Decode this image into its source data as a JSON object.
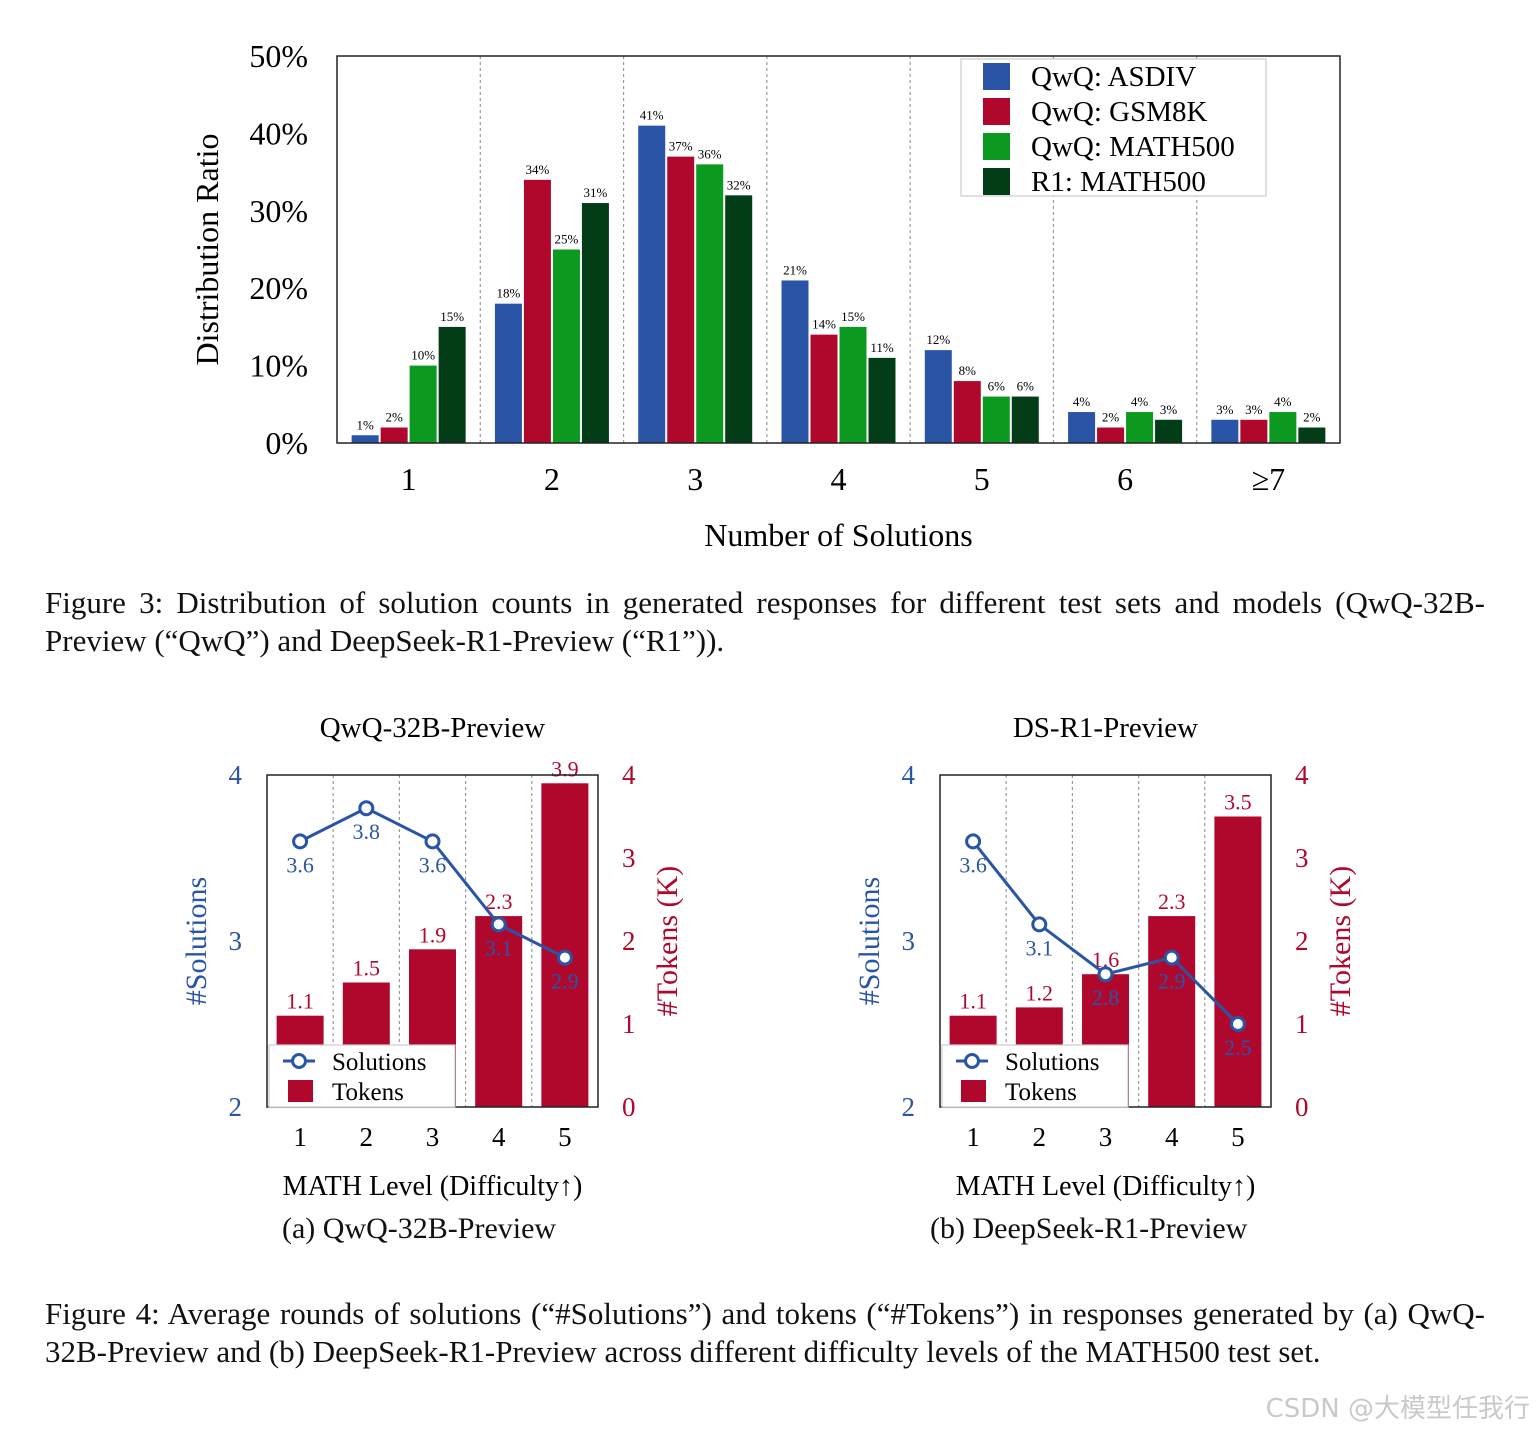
{
  "chart_data": [
    {
      "type": "bar",
      "categories": [
        "1",
        "2",
        "3",
        "4",
        "5",
        "6",
        "≥7"
      ],
      "series": [
        {
          "name": "QwQ: ASDIV",
          "color": "#2a55a7",
          "values": [
            1,
            18,
            41,
            21,
            12,
            4,
            3
          ]
        },
        {
          "name": "QwQ: GSM8K",
          "color": "#b0082c",
          "values": [
            2,
            34,
            37,
            14,
            8,
            2,
            3
          ]
        },
        {
          "name": "QwQ: MATH500",
          "color": "#0b9a1f",
          "values": [
            10,
            25,
            36,
            15,
            6,
            4,
            4
          ]
        },
        {
          "name": "R1: MATH500",
          "color": "#023d18",
          "values": [
            15,
            31,
            32,
            11,
            6,
            3,
            2
          ]
        }
      ],
      "data_label_suffix": "%",
      "xlabel": "Number of Solutions",
      "ylabel": "Distribution Ratio",
      "ylim": [
        0,
        50
      ],
      "yticks": [
        "0%",
        "10%",
        "20%",
        "30%",
        "40%",
        "50%"
      ],
      "legend": "top-right",
      "grid": "vertical dotted separators"
    },
    {
      "type": "bar+line",
      "title": "QwQ-32B-Preview",
      "categories": [
        "1",
        "2",
        "3",
        "4",
        "5"
      ],
      "bars": {
        "name": "Tokens",
        "color": "#b0082c",
        "values": [
          1.1,
          1.5,
          1.9,
          2.3,
          3.9
        ],
        "labels": [
          "1.1",
          "1.5",
          "1.9",
          "2.3",
          "3.9"
        ]
      },
      "line": {
        "name": "Solutions",
        "color": "#2a55a7",
        "values": [
          3.6,
          3.8,
          3.6,
          3.1,
          2.9
        ],
        "labels": [
          "3.6",
          "3.8",
          "3.6",
          "3.1",
          "2.9"
        ]
      },
      "xlabel": "MATH Level (Difficulty↑)",
      "ylabel_left": "#Solutions",
      "ylabel_right": "#Tokens (K)",
      "ylim_left": [
        2,
        4
      ],
      "yticks_left": [
        "2",
        "3",
        "4"
      ],
      "ylim_right": [
        0,
        4
      ],
      "yticks_right": [
        "0",
        "1",
        "2",
        "3",
        "4"
      ],
      "legend": "bottom-left"
    },
    {
      "type": "bar+line",
      "title": "DS-R1-Preview",
      "categories": [
        "1",
        "2",
        "3",
        "4",
        "5"
      ],
      "bars": {
        "name": "Tokens",
        "color": "#b0082c",
        "values": [
          1.1,
          1.2,
          1.6,
          2.3,
          3.5
        ],
        "labels": [
          "1.1",
          "1.2",
          "1.6",
          "2.3",
          "3.5"
        ]
      },
      "line": {
        "name": "Solutions",
        "color": "#2a55a7",
        "values": [
          3.6,
          3.1,
          2.8,
          2.9,
          2.5
        ],
        "labels": [
          "3.6",
          "3.1",
          "2.8",
          "2.9",
          "2.5"
        ]
      },
      "xlabel": "MATH Level (Difficulty↑)",
      "ylabel_left": "#Solutions",
      "ylabel_right": "#Tokens (K)",
      "ylim_left": [
        2,
        4
      ],
      "yticks_left": [
        "2",
        "3",
        "4"
      ],
      "ylim_right": [
        0,
        4
      ],
      "yticks_right": [
        "0",
        "1",
        "2",
        "3",
        "4"
      ],
      "legend": "bottom-left"
    }
  ],
  "captions": {
    "fig3": "Figure 3: Distribution of solution counts in generated responses for different test sets and models (QwQ-32B-Preview (“QwQ”) and DeepSeek-R1-Preview (“R1”)).",
    "fig4": "Figure 4: Average rounds of solutions (“#Solutions”) and tokens (“#Tokens”) in responses generated by (a) QwQ-32B-Preview and (b) DeepSeek-R1-Preview across different difficulty levels of the MATH500 test set.",
    "sub_a": "(a) QwQ-32B-Preview",
    "sub_b": "(b) DeepSeek-R1-Preview"
  },
  "watermark": "CSDN @大模型任我行"
}
